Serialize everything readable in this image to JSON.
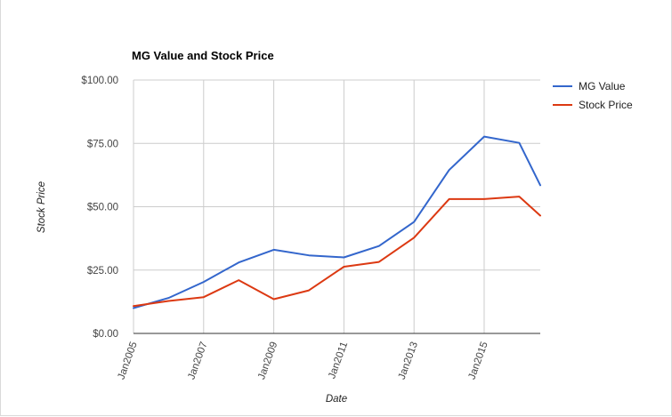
{
  "chart_data": {
    "type": "line",
    "title": "MG Value and Stock Price",
    "xlabel": "Date",
    "ylabel": "Stock Price",
    "x_tick_labels": [
      "Jan2005",
      "Jan2007",
      "Jan2009",
      "Jan2011",
      "Jan2013",
      "Jan2015"
    ],
    "y_tick_labels": [
      "$0.00",
      "$25.00",
      "$50.00",
      "$75.00",
      "$100.00"
    ],
    "ylim": [
      0,
      100
    ],
    "xlim": [
      2005,
      2016.6
    ],
    "x_ticks": [
      2005,
      2007,
      2009,
      2011,
      2013,
      2015
    ],
    "y_ticks": [
      0,
      25,
      50,
      75,
      100
    ],
    "grid": true,
    "legend_position": "right",
    "x": [
      2005,
      2006,
      2007,
      2008,
      2009,
      2010,
      2011,
      2012,
      2013,
      2014,
      2015,
      2016,
      2016.6
    ],
    "series": [
      {
        "name": "MG Value",
        "color": "#3366cc",
        "values": [
          10.0,
          14.0,
          20.3,
          28.0,
          33.0,
          30.8,
          30.0,
          34.5,
          44.0,
          64.5,
          77.7,
          75.2,
          58.5
        ]
      },
      {
        "name": "Stock Price",
        "color": "#dc3912",
        "values": [
          10.8,
          12.8,
          14.3,
          21.0,
          13.5,
          17.0,
          26.3,
          28.2,
          37.8,
          53.0,
          53.0,
          54.0,
          46.5
        ]
      }
    ]
  }
}
